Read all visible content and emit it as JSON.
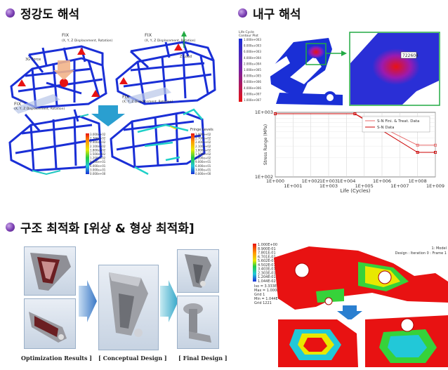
{
  "sections": {
    "static": {
      "title": "정강도 해석"
    },
    "durability": {
      "title": "내구 해석"
    },
    "optimization": {
      "title": "구조 최적화 [위상 & 형상 최적화]"
    }
  },
  "static_panel": {
    "labels": {
      "fix_top": "FIX",
      "fix_top_sub": "(X, Y, Z Displacement, Rotation)",
      "force": "3G Force",
      "fix_bottom": "FIX",
      "fix_bottom_sub": "(X, Y, Z Displacement, Rotation)",
      "fix_right": "FIX",
      "fix_right_sub": "(X, Y, Z Displacement, Rotation)",
      "zload": "Z Load",
      "fix_right2": "FIX",
      "fix_right2_sub": "(X, Y, Z Displacement, Rotation)"
    },
    "legend_title": "Fringe Levels",
    "legend_values": [
      "3.000e+02",
      "2.700e+02",
      "2.400e+02",
      "2.100e+02",
      "1.800e+02",
      "1.500e+02",
      "1.200e+02",
      "9.000e+01",
      "6.000e+01",
      "3.000e+01",
      "0.000e+00"
    ]
  },
  "durability_panel": {
    "legend_title": "Life Cycle",
    "legend_title2": "Contour Plot",
    "legend_values": [
      "1.000e+003",
      "8.000e+003",
      "6.000e+003",
      "4.000e+004",
      "2.000e+004",
      "1.000e+005",
      "8.000e+005",
      "6.000e+006",
      "4.000e+006",
      "2.000e+007",
      "1.000e+007"
    ],
    "zoom_label": "722604"
  },
  "chart_data": {
    "type": "line",
    "title": "",
    "xlabel": "Life (Cycles)",
    "ylabel": "Stress Range (MPa)",
    "x_scale": "log",
    "y_scale": "log",
    "x_ticks_upper": [
      "1E+000",
      "1E+002",
      "1E+003",
      "1E+004",
      "1E+006",
      "1E+008"
    ],
    "x_ticks_lower": [
      "1E+001",
      "1E+003",
      "1E+005",
      "1E+007",
      "1E+009"
    ],
    "y_ticks": [
      "1E+003",
      "1E+002"
    ],
    "ylim": [
      100,
      1000
    ],
    "xlim": [
      1,
      1000000000
    ],
    "legend_position": "top-right",
    "series": [
      {
        "name": "S-N Fini. & Treat. Data",
        "color": "#e86a6a",
        "x": [
          1,
          30000,
          100000000,
          1000000000
        ],
        "y": [
          950,
          950,
          310,
          310
        ]
      },
      {
        "name": "S-N Data",
        "color": "#cc0000",
        "x": [
          1,
          30000,
          100000000,
          1000000000
        ],
        "y": [
          950,
          950,
          240,
          240
        ]
      }
    ]
  },
  "optimization_panel": {
    "captions": {
      "optimization": "Optimization  Results ]",
      "conceptual": "[ Conceptual Design ]",
      "final": "[ Final Design ]"
    }
  },
  "shape_panel": {
    "header_line1": "1: Model",
    "header_line2": "Design : Iteration 0 : Frame 1",
    "legend_values": [
      "1.000E+00",
      "8.900E-01",
      "7.801E-01",
      "6.701E-01",
      "5.602E-01",
      "4.502E-01",
      "3.403E-01",
      "2.303E-01",
      "1.204E-01",
      "1.044E-02"
    ],
    "info_lines": [
      "Iso = 3.333E-01",
      "Max = 1.000E+00",
      "Grid 1",
      "Min = 1.044E-02",
      "Grid 1221"
    ]
  },
  "colors": {
    "bullet": "#7b3fb3",
    "frame_blue": "#1a2fd6",
    "arrow_teal": "#2a9fd0",
    "arrow_green": "#22aa44",
    "red_part": "#e81212",
    "sn_series_1": "#e86a6a",
    "sn_series_2": "#cc0000"
  }
}
